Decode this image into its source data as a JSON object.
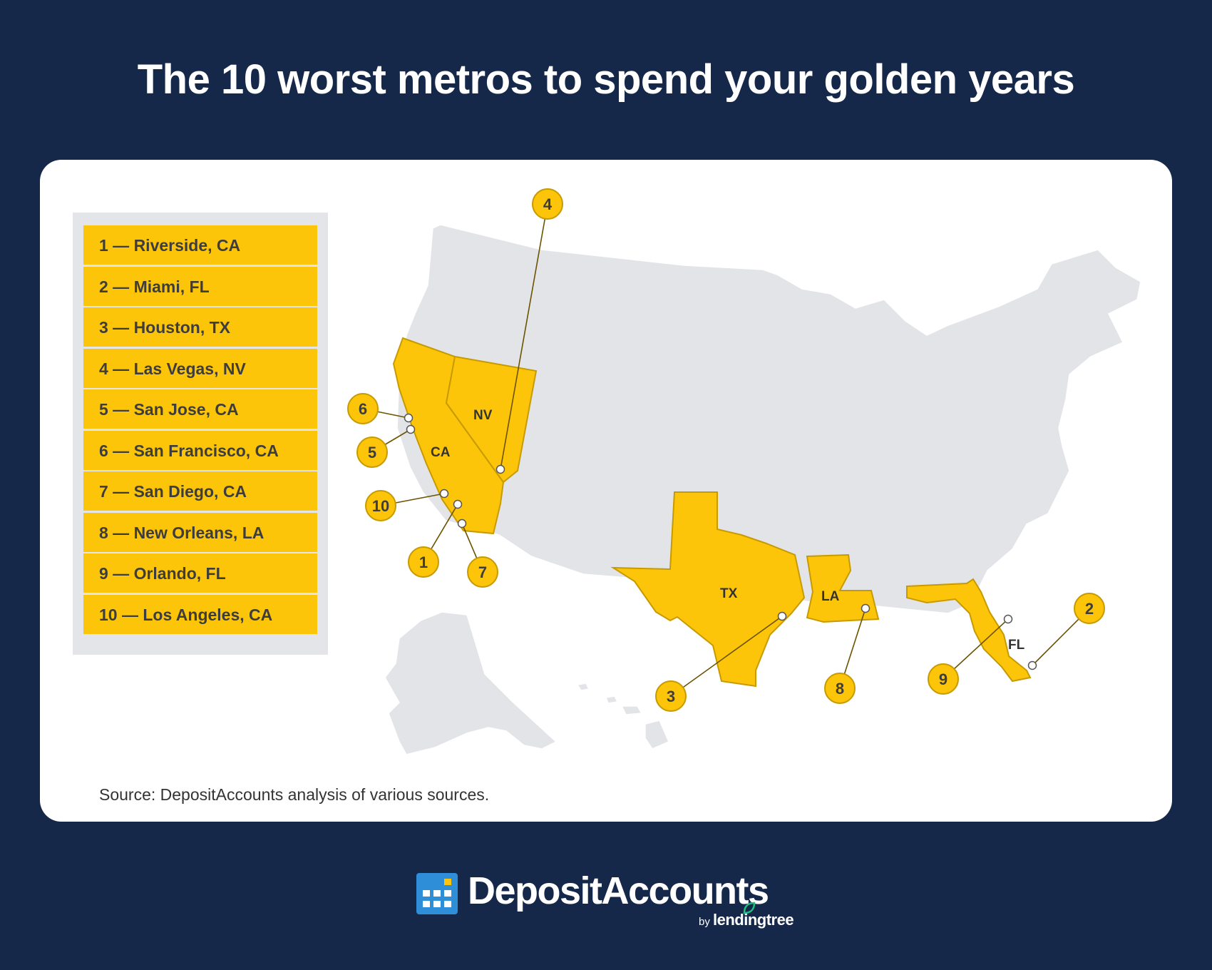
{
  "title": "The 10 worst metros to spend your golden years",
  "legend": [
    "1 — Riverside, CA",
    "2 — Miami, FL",
    "3 — Houston, TX",
    "4 — Las Vegas, NV",
    "5 — San Jose, CA",
    "6 — San Francisco, CA",
    "7 — San Diego, CA",
    "8 — New Orleans, LA",
    "9 — Orlando, FL",
    "10 — Los Angeles, CA"
  ],
  "highlighted_states": [
    "CA",
    "NV",
    "TX",
    "LA",
    "FL"
  ],
  "markers": [
    "1",
    "2",
    "3",
    "4",
    "5",
    "6",
    "7",
    "8",
    "9",
    "10"
  ],
  "source": "Source: DepositAccounts analysis of various sources.",
  "brand": {
    "name": "DepositAccounts",
    "by": "by",
    "parent": "lendingtree"
  },
  "colors": {
    "background": "#15284a",
    "highlight": "#fdc50a",
    "base_state": "#e3e4e8",
    "legend_panel": "#e4e5e8",
    "logo_blue": "#2e8fd8",
    "leaf_green": "#1fbf80"
  }
}
